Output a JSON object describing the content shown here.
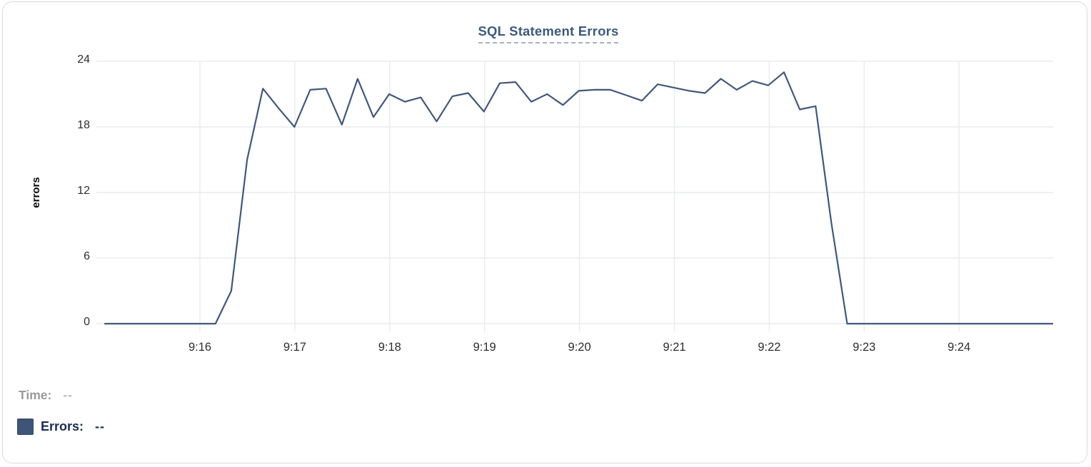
{
  "chart": {
    "title": "SQL Statement Errors",
    "y_axis_label": "errors",
    "legend": {
      "time_label": "Time:",
      "time_value": "--",
      "errors_label": "Errors:",
      "errors_value": "--"
    },
    "colors": {
      "line": "#42577b",
      "swatch": "#3e5578",
      "title": "#3d5a7e",
      "grid": "#e9ebed",
      "tick_text": "#2d2d2d",
      "time_text": "#9a9a9a",
      "errors_text": "#1b2e52",
      "card_border": "#d9dbde"
    }
  },
  "chart_data": {
    "type": "line",
    "title": "SQL Statement Errors",
    "xlabel": "",
    "ylabel": "errors",
    "ylim": [
      0,
      24
    ],
    "y_ticks": [
      0,
      6,
      12,
      18,
      24
    ],
    "x_tick_labels": [
      "9:16",
      "9:17",
      "9:18",
      "9:19",
      "9:20",
      "9:21",
      "9:22",
      "9:23",
      "9:24"
    ],
    "x_start": "9:15:00",
    "x_end": "9:25:00",
    "interval_seconds": 10,
    "grid": true,
    "legend_position": "bottom-left",
    "series": [
      {
        "name": "Errors",
        "values": [
          0,
          0,
          0,
          0,
          0,
          0,
          0,
          0,
          3,
          15,
          21.5,
          19.7,
          18,
          21.4,
          21.5,
          18.2,
          22.4,
          18.9,
          21,
          20.3,
          20.7,
          18.5,
          20.8,
          21.1,
          19.4,
          22,
          22.1,
          20.3,
          21,
          20,
          21.3,
          21.4,
          21.4,
          20.9,
          20.4,
          21.9,
          21.6,
          21.3,
          21.1,
          22.4,
          21.4,
          22.2,
          21.8,
          23,
          19.6,
          19.9,
          9.2,
          0,
          0,
          0,
          0,
          0,
          0,
          0,
          0,
          0,
          0,
          0,
          0,
          0,
          0
        ]
      }
    ]
  }
}
